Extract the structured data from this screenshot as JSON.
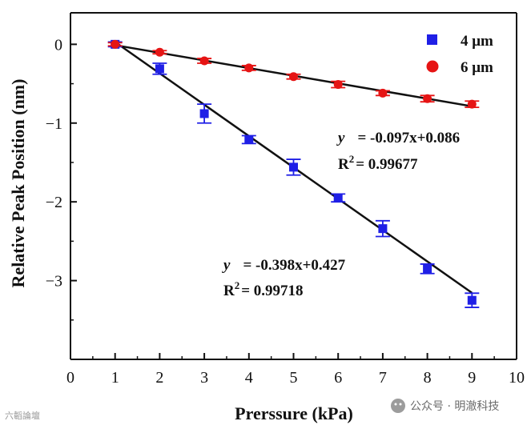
{
  "chart_data": {
    "type": "scatter",
    "xlabel": "Prerssure (kPa)",
    "ylabel": "Relative Peak Position (nm)",
    "xlim": [
      0,
      10
    ],
    "ylim": [
      -4.0,
      0.4
    ],
    "x_ticks": [
      0,
      1,
      2,
      3,
      4,
      5,
      6,
      7,
      8,
      9,
      10
    ],
    "y_ticks": [
      0,
      -1,
      -2,
      -3
    ],
    "y_tick_labels": [
      "0",
      "−1",
      "−2",
      "−3"
    ],
    "grid": false,
    "legend_position": "top-right",
    "series": [
      {
        "name": "4 μm",
        "marker": "square",
        "color": "#1f1fe6",
        "x": [
          1,
          2,
          3,
          4,
          5,
          6,
          7,
          8,
          9
        ],
        "y": [
          0.0,
          -0.31,
          -0.88,
          -1.21,
          -1.56,
          -1.95,
          -2.34,
          -2.85,
          -3.25
        ],
        "error": [
          0.03,
          0.07,
          0.12,
          0.05,
          0.1,
          0.05,
          0.1,
          0.06,
          0.09
        ],
        "fit": {
          "slope": -0.398,
          "intercept": 0.427,
          "x_range": [
            1,
            9
          ]
        }
      },
      {
        "name": "6 μm",
        "marker": "circle",
        "color": "#e61414",
        "x": [
          1,
          2,
          3,
          4,
          5,
          6,
          7,
          8,
          9
        ],
        "y": [
          0.0,
          -0.1,
          -0.21,
          -0.3,
          -0.41,
          -0.51,
          -0.62,
          -0.69,
          -0.76
        ],
        "error": [
          0.02,
          0.02,
          0.03,
          0.03,
          0.03,
          0.04,
          0.03,
          0.04,
          0.04
        ],
        "fit": {
          "slope": -0.097,
          "intercept": 0.086,
          "x_range": [
            1,
            9
          ]
        }
      }
    ],
    "annotations": [
      {
        "y_label": "y",
        "equation": "= -0.097x+0.086",
        "r2_label": "R",
        "r2_sup": "2",
        "r2_value": "= 0.99677"
      },
      {
        "y_label": "y",
        "equation": "= -0.398x+0.427",
        "r2_label": "R",
        "r2_sup": "2",
        "r2_value": "= 0.99718"
      }
    ]
  },
  "watermark": {
    "left_text": "六韜論壇",
    "right_text": "公众号 · 明澈科技"
  }
}
